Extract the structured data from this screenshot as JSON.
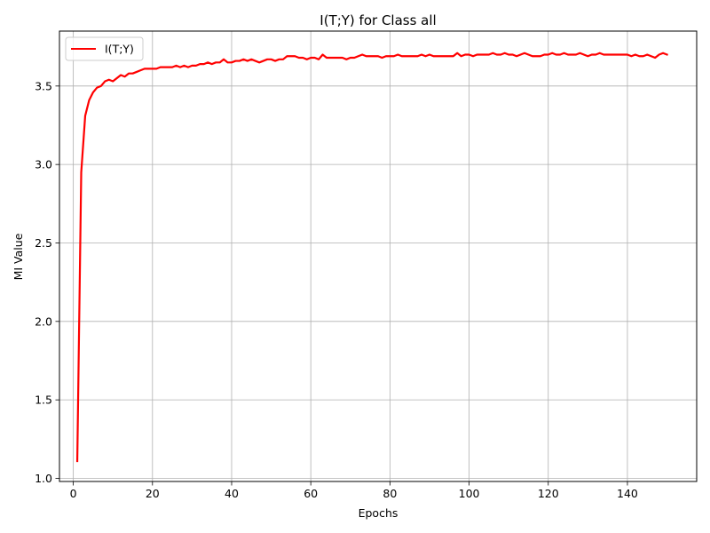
{
  "chart_data": {
    "type": "line",
    "title": "I(T;Y) for Class all",
    "xlabel": "Epochs",
    "ylabel": "MI Value",
    "xlim": [
      -3.5,
      157.5
    ],
    "ylim": [
      0.98,
      3.85
    ],
    "xticks": [
      0,
      20,
      40,
      60,
      80,
      100,
      120,
      140
    ],
    "yticks": [
      1.0,
      1.5,
      2.0,
      2.5,
      3.0,
      3.5
    ],
    "ytick_labels": [
      "1.0",
      "1.5",
      "2.0",
      "2.5",
      "3.0",
      "3.5"
    ],
    "grid": true,
    "legend_position": "upper-left",
    "series": [
      {
        "name": "I(T;Y)",
        "color": "#ff0000",
        "x": [
          1,
          2,
          3,
          4,
          5,
          6,
          7,
          8,
          9,
          10,
          11,
          12,
          13,
          14,
          15,
          16,
          17,
          18,
          19,
          20,
          21,
          22,
          23,
          24,
          25,
          26,
          27,
          28,
          29,
          30,
          31,
          32,
          33,
          34,
          35,
          36,
          37,
          38,
          39,
          40,
          41,
          42,
          43,
          44,
          45,
          46,
          47,
          48,
          49,
          50,
          51,
          52,
          53,
          54,
          55,
          56,
          57,
          58,
          59,
          60,
          61,
          62,
          63,
          64,
          65,
          66,
          67,
          68,
          69,
          70,
          71,
          72,
          73,
          74,
          75,
          76,
          77,
          78,
          79,
          80,
          81,
          82,
          83,
          84,
          85,
          86,
          87,
          88,
          89,
          90,
          91,
          92,
          93,
          94,
          95,
          96,
          97,
          98,
          99,
          100,
          101,
          102,
          103,
          104,
          105,
          106,
          107,
          108,
          109,
          110,
          111,
          112,
          113,
          114,
          115,
          116,
          117,
          118,
          119,
          120,
          121,
          122,
          123,
          124,
          125,
          126,
          127,
          128,
          129,
          130,
          131,
          132,
          133,
          134,
          135,
          136,
          137,
          138,
          139,
          140,
          141,
          142,
          143,
          144,
          145,
          146,
          147,
          148,
          149,
          150
        ],
        "y": [
          1.11,
          2.95,
          3.31,
          3.41,
          3.46,
          3.49,
          3.5,
          3.53,
          3.54,
          3.53,
          3.55,
          3.57,
          3.56,
          3.58,
          3.58,
          3.59,
          3.6,
          3.61,
          3.61,
          3.61,
          3.61,
          3.62,
          3.62,
          3.62,
          3.62,
          3.63,
          3.62,
          3.63,
          3.62,
          3.63,
          3.63,
          3.64,
          3.64,
          3.65,
          3.64,
          3.65,
          3.65,
          3.67,
          3.65,
          3.65,
          3.66,
          3.66,
          3.67,
          3.66,
          3.67,
          3.66,
          3.65,
          3.66,
          3.67,
          3.67,
          3.66,
          3.67,
          3.67,
          3.69,
          3.69,
          3.69,
          3.68,
          3.68,
          3.67,
          3.68,
          3.68,
          3.67,
          3.7,
          3.68,
          3.68,
          3.68,
          3.68,
          3.68,
          3.67,
          3.68,
          3.68,
          3.69,
          3.7,
          3.69,
          3.69,
          3.69,
          3.69,
          3.68,
          3.69,
          3.69,
          3.69,
          3.7,
          3.69,
          3.69,
          3.69,
          3.69,
          3.69,
          3.7,
          3.69,
          3.7,
          3.69,
          3.69,
          3.69,
          3.69,
          3.69,
          3.69,
          3.71,
          3.69,
          3.7,
          3.7,
          3.69,
          3.7,
          3.7,
          3.7,
          3.7,
          3.71,
          3.7,
          3.7,
          3.71,
          3.7,
          3.7,
          3.69,
          3.7,
          3.71,
          3.7,
          3.69,
          3.69,
          3.69,
          3.7,
          3.7,
          3.71,
          3.7,
          3.7,
          3.71,
          3.7,
          3.7,
          3.7,
          3.71,
          3.7,
          3.69,
          3.7,
          3.7,
          3.71,
          3.7,
          3.7,
          3.7,
          3.7,
          3.7,
          3.7,
          3.7,
          3.69,
          3.7,
          3.69,
          3.69,
          3.7,
          3.69,
          3.68,
          3.7,
          3.71,
          3.7
        ]
      }
    ]
  }
}
